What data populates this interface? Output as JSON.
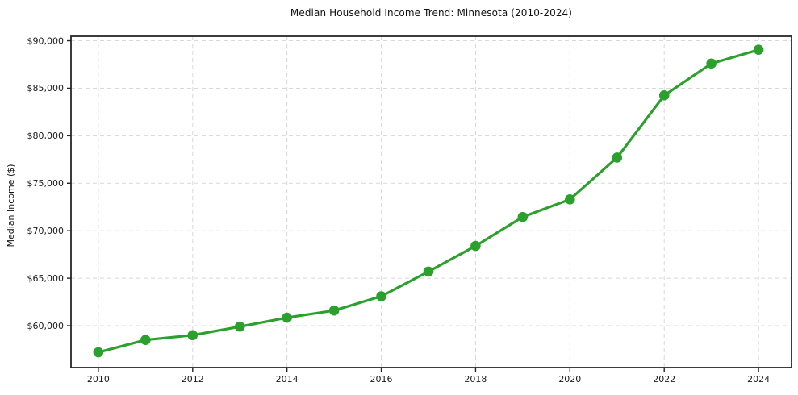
{
  "chart_data": {
    "type": "line",
    "title": "Median Household Income Trend: Minnesota (2010-2024)",
    "xlabel": "",
    "ylabel": "Median Income ($)",
    "x": [
      2010,
      2011,
      2012,
      2013,
      2014,
      2015,
      2016,
      2017,
      2018,
      2019,
      2020,
      2021,
      2022,
      2023,
      2024
    ],
    "series": [
      {
        "name": "Median household income",
        "color": "#2ca02c",
        "values": [
          57200,
          58500,
          59000,
          59900,
          60850,
          61600,
          63100,
          65700,
          68400,
          71450,
          73300,
          77700,
          84250,
          87600,
          89050
        ]
      }
    ],
    "xlim": [
      2009.42,
      2024.7
    ],
    "ylim": [
      55590,
      90470
    ],
    "xticks": [
      2010,
      2012,
      2014,
      2016,
      2018,
      2020,
      2022,
      2024
    ],
    "yticks": [
      60000,
      65000,
      70000,
      75000,
      80000,
      85000,
      90000
    ],
    "ytick_prefix": "$",
    "grid": true,
    "grid_style": "dashed",
    "legend_position": "none",
    "marker": "circle",
    "colors": {
      "line": "#2ca02c",
      "marker": "#2ca02c",
      "grid": "#d8d8d8",
      "spine": "#262626",
      "tick": "#262626",
      "tick_label": "#1a1a1a",
      "title": "#111111",
      "background": "#ffffff"
    }
  }
}
